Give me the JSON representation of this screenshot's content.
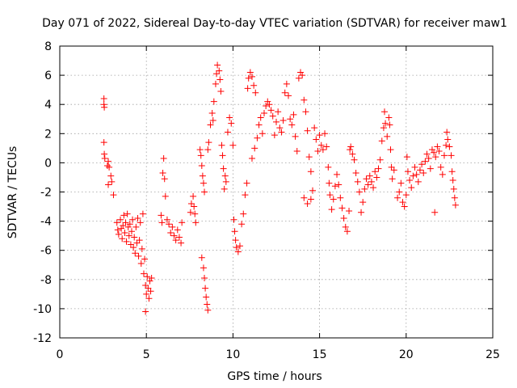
{
  "chart_data": {
    "type": "scatter",
    "title": "Day 071 of 2022, Sidereal Day-to-day VTEC variation (SDTVAR) for receiver maw1",
    "xlabel": "GPS time / hours",
    "ylabel": "SDTVAR / TECUs",
    "xlim": [
      0,
      25
    ],
    "ylim": [
      -12,
      8
    ],
    "xticks": [
      0,
      5,
      10,
      15,
      20,
      25
    ],
    "yticks": [
      -12,
      -10,
      -8,
      -6,
      -4,
      -2,
      0,
      2,
      4,
      6,
      8
    ],
    "grid": true,
    "marker": "+",
    "color": "#ff0000",
    "series": [
      {
        "name": "SDTVAR",
        "points": [
          [
            2.55,
            4.4
          ],
          [
            2.55,
            4.0
          ],
          [
            2.57,
            3.8
          ],
          [
            2.55,
            1.4
          ],
          [
            2.57,
            0.6
          ],
          [
            2.6,
            0.3
          ],
          [
            2.75,
            -0.2
          ],
          [
            2.8,
            0.1
          ],
          [
            2.85,
            -0.3
          ],
          [
            2.8,
            -1.5
          ],
          [
            2.95,
            -0.9
          ],
          [
            3.0,
            -1.3
          ],
          [
            3.1,
            -2.2
          ],
          [
            3.3,
            -4.1
          ],
          [
            3.35,
            -4.6
          ],
          [
            3.4,
            -4.9
          ],
          [
            3.5,
            -3.9
          ],
          [
            3.55,
            -4.5
          ],
          [
            3.6,
            -5.2
          ],
          [
            3.65,
            -4.3
          ],
          [
            3.7,
            -3.6
          ],
          [
            3.75,
            -4.8
          ],
          [
            3.8,
            -4.1
          ],
          [
            3.85,
            -5.4
          ],
          [
            3.9,
            -3.5
          ],
          [
            3.95,
            -4.4
          ],
          [
            4.0,
            -5.0
          ],
          [
            4.05,
            -4.2
          ],
          [
            4.1,
            -5.6
          ],
          [
            4.15,
            -4.7
          ],
          [
            4.2,
            -3.9
          ],
          [
            4.25,
            -5.8
          ],
          [
            4.3,
            -5.1
          ],
          [
            4.35,
            -6.2
          ],
          [
            4.4,
            -4.4
          ],
          [
            4.45,
            -5.5
          ],
          [
            4.5,
            -3.8
          ],
          [
            4.55,
            -6.4
          ],
          [
            4.6,
            -5.3
          ],
          [
            4.65,
            -4.1
          ],
          [
            4.7,
            -6.9
          ],
          [
            4.75,
            -5.9
          ],
          [
            4.8,
            -3.5
          ],
          [
            4.85,
            -7.6
          ],
          [
            4.9,
            -6.6
          ],
          [
            4.95,
            -8.4
          ],
          [
            4.95,
            -10.2
          ],
          [
            5.0,
            -9.0
          ],
          [
            5.05,
            -7.8
          ],
          [
            5.1,
            -8.6
          ],
          [
            5.15,
            -9.3
          ],
          [
            5.2,
            -8.1
          ],
          [
            5.25,
            -8.8
          ],
          [
            5.3,
            -7.9
          ],
          [
            5.85,
            -3.6
          ],
          [
            5.9,
            -4.1
          ],
          [
            5.95,
            -0.7
          ],
          [
            6.0,
            0.3
          ],
          [
            6.05,
            -1.1
          ],
          [
            6.1,
            -2.3
          ],
          [
            6.2,
            -3.9
          ],
          [
            6.3,
            -4.2
          ],
          [
            6.4,
            -4.8
          ],
          [
            6.5,
            -4.4
          ],
          [
            6.6,
            -5.0
          ],
          [
            6.7,
            -5.3
          ],
          [
            6.8,
            -4.6
          ],
          [
            6.9,
            -5.1
          ],
          [
            7.0,
            -5.5
          ],
          [
            7.05,
            -4.1
          ],
          [
            7.55,
            -3.4
          ],
          [
            7.6,
            -2.8
          ],
          [
            7.7,
            -2.3
          ],
          [
            7.75,
            -3.0
          ],
          [
            7.8,
            -3.5
          ],
          [
            7.85,
            -4.1
          ],
          [
            8.1,
            0.9
          ],
          [
            8.15,
            0.5
          ],
          [
            8.2,
            -0.2
          ],
          [
            8.25,
            -0.9
          ],
          [
            8.3,
            -1.4
          ],
          [
            8.35,
            -2.0
          ],
          [
            8.2,
            -6.5
          ],
          [
            8.3,
            -7.2
          ],
          [
            8.35,
            -7.9
          ],
          [
            8.4,
            -8.6
          ],
          [
            8.45,
            -9.2
          ],
          [
            8.5,
            -9.7
          ],
          [
            8.55,
            -10.1
          ],
          [
            8.55,
            0.9
          ],
          [
            8.6,
            1.4
          ],
          [
            8.7,
            2.6
          ],
          [
            8.8,
            3.4
          ],
          [
            8.85,
            2.9
          ],
          [
            8.9,
            4.2
          ],
          [
            9.0,
            5.4
          ],
          [
            9.05,
            6.1
          ],
          [
            9.1,
            6.7
          ],
          [
            9.2,
            6.3
          ],
          [
            9.25,
            5.7
          ],
          [
            9.3,
            4.9
          ],
          [
            9.35,
            1.2
          ],
          [
            9.4,
            0.5
          ],
          [
            9.45,
            -0.4
          ],
          [
            9.5,
            -1.8
          ],
          [
            9.55,
            -0.9
          ],
          [
            9.6,
            -1.3
          ],
          [
            9.7,
            2.1
          ],
          [
            9.8,
            3.1
          ],
          [
            9.9,
            2.7
          ],
          [
            10.0,
            1.2
          ],
          [
            10.05,
            -3.9
          ],
          [
            10.1,
            -4.7
          ],
          [
            10.15,
            -5.3
          ],
          [
            10.2,
            -5.8
          ],
          [
            10.3,
            -6.1
          ],
          [
            10.4,
            -5.7
          ],
          [
            10.5,
            -4.2
          ],
          [
            10.6,
            -3.5
          ],
          [
            10.7,
            -2.2
          ],
          [
            10.8,
            -1.4
          ],
          [
            10.85,
            5.1
          ],
          [
            10.9,
            5.8
          ],
          [
            11.0,
            6.2
          ],
          [
            11.1,
            5.9
          ],
          [
            11.2,
            5.3
          ],
          [
            11.3,
            4.8
          ],
          [
            11.1,
            0.3
          ],
          [
            11.25,
            1.0
          ],
          [
            11.4,
            1.7
          ],
          [
            11.5,
            2.6
          ],
          [
            11.6,
            3.1
          ],
          [
            11.7,
            2.0
          ],
          [
            11.8,
            3.4
          ],
          [
            11.9,
            3.9
          ],
          [
            12.0,
            4.2
          ],
          [
            12.1,
            4.0
          ],
          [
            12.2,
            3.6
          ],
          [
            12.3,
            3.2
          ],
          [
            12.4,
            1.9
          ],
          [
            12.5,
            2.8
          ],
          [
            12.6,
            3.5
          ],
          [
            12.7,
            2.4
          ],
          [
            12.8,
            2.1
          ],
          [
            12.9,
            2.9
          ],
          [
            13.0,
            4.8
          ],
          [
            13.1,
            5.4
          ],
          [
            13.2,
            4.6
          ],
          [
            13.3,
            3.0
          ],
          [
            13.4,
            2.6
          ],
          [
            13.5,
            3.3
          ],
          [
            13.6,
            1.8
          ],
          [
            13.7,
            0.8
          ],
          [
            13.8,
            5.8
          ],
          [
            13.9,
            6.2
          ],
          [
            14.0,
            6.0
          ],
          [
            14.1,
            4.3
          ],
          [
            14.2,
            3.5
          ],
          [
            14.3,
            2.2
          ],
          [
            14.4,
            0.4
          ],
          [
            14.5,
            -0.6
          ],
          [
            14.1,
            -2.4
          ],
          [
            14.3,
            -2.8
          ],
          [
            14.5,
            -2.5
          ],
          [
            14.6,
            -1.9
          ],
          [
            14.7,
            2.4
          ],
          [
            14.8,
            1.6
          ],
          [
            14.9,
            0.8
          ],
          [
            15.0,
            1.9
          ],
          [
            15.1,
            1.2
          ],
          [
            15.2,
            0.9
          ],
          [
            15.3,
            2.0
          ],
          [
            15.4,
            1.1
          ],
          [
            15.5,
            -0.3
          ],
          [
            15.55,
            -1.4
          ],
          [
            15.6,
            -2.2
          ],
          [
            15.7,
            -3.2
          ],
          [
            15.8,
            -2.5
          ],
          [
            15.9,
            -1.6
          ],
          [
            16.0,
            -0.8
          ],
          [
            16.1,
            -1.5
          ],
          [
            16.2,
            -2.4
          ],
          [
            16.3,
            -3.1
          ],
          [
            16.4,
            -3.8
          ],
          [
            16.5,
            -4.4
          ],
          [
            16.6,
            -4.7
          ],
          [
            16.7,
            -3.3
          ],
          [
            16.75,
            0.9
          ],
          [
            16.8,
            1.1
          ],
          [
            16.9,
            0.6
          ],
          [
            17.0,
            0.2
          ],
          [
            17.1,
            -0.7
          ],
          [
            17.2,
            -1.3
          ],
          [
            17.3,
            -2.0
          ],
          [
            17.4,
            -3.4
          ],
          [
            17.5,
            -2.7
          ],
          [
            17.6,
            -1.8
          ],
          [
            17.7,
            -1.1
          ],
          [
            17.8,
            -1.5
          ],
          [
            17.9,
            -0.9
          ],
          [
            18.0,
            -1.3
          ],
          [
            18.1,
            -1.7
          ],
          [
            18.2,
            -0.6
          ],
          [
            18.3,
            -1.0
          ],
          [
            18.4,
            -0.4
          ],
          [
            18.5,
            0.2
          ],
          [
            18.6,
            1.5
          ],
          [
            18.7,
            2.4
          ],
          [
            18.75,
            3.5
          ],
          [
            18.8,
            2.7
          ],
          [
            18.9,
            1.8
          ],
          [
            19.0,
            3.1
          ],
          [
            19.05,
            2.6
          ],
          [
            19.1,
            0.9
          ],
          [
            19.15,
            -0.3
          ],
          [
            19.2,
            -1.1
          ],
          [
            19.3,
            -0.5
          ],
          [
            19.5,
            -2.4
          ],
          [
            19.6,
            -2.0
          ],
          [
            19.7,
            -1.4
          ],
          [
            19.8,
            -2.7
          ],
          [
            19.9,
            -3.0
          ],
          [
            20.0,
            -2.2
          ],
          [
            20.05,
            0.4
          ],
          [
            20.1,
            -0.6
          ],
          [
            20.2,
            -1.2
          ],
          [
            20.3,
            -1.7
          ],
          [
            20.4,
            -0.9
          ],
          [
            20.5,
            -0.3
          ],
          [
            20.6,
            -0.8
          ],
          [
            20.7,
            -1.3
          ],
          [
            20.8,
            -0.5
          ],
          [
            20.9,
            -0.1
          ],
          [
            21.0,
            -0.7
          ],
          [
            21.1,
            0.1
          ],
          [
            21.2,
            0.6
          ],
          [
            21.3,
            0.3
          ],
          [
            21.4,
            -0.4
          ],
          [
            21.5,
            0.9
          ],
          [
            21.6,
            0.7
          ],
          [
            21.65,
            -3.4
          ],
          [
            21.7,
            0.4
          ],
          [
            21.8,
            1.1
          ],
          [
            21.9,
            0.8
          ],
          [
            22.0,
            -0.3
          ],
          [
            22.1,
            -0.8
          ],
          [
            22.2,
            0.5
          ],
          [
            22.3,
            1.2
          ],
          [
            22.35,
            2.1
          ],
          [
            22.4,
            1.6
          ],
          [
            22.5,
            1.1
          ],
          [
            22.6,
            0.5
          ],
          [
            22.65,
            -0.6
          ],
          [
            22.7,
            -1.2
          ],
          [
            22.75,
            -1.8
          ],
          [
            22.8,
            -2.4
          ],
          [
            22.85,
            -2.9
          ]
        ]
      }
    ]
  }
}
